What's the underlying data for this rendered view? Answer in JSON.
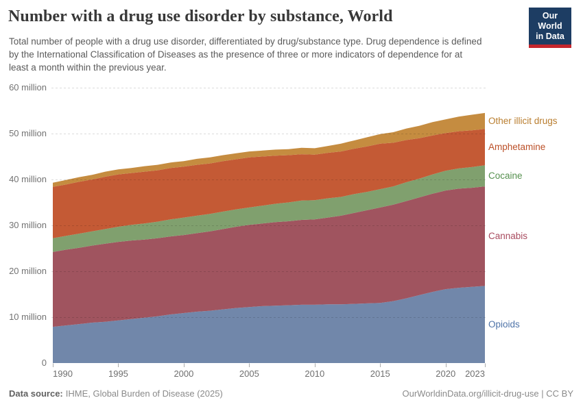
{
  "header": {
    "title": "Number with a drug use disorder by substance, World",
    "subtitle": "Total number of people with a drug use disorder, differentiated by drug/substance type. Drug dependence is defined by the International Classification of Diseases as the presence of three or more indicators of dependence for at least a month within the previous year.",
    "logo": {
      "line1": "Our World",
      "line2": "in Data",
      "bg_color": "#1d3d63",
      "accent_color": "#c5262d"
    }
  },
  "chart_data": {
    "type": "area",
    "stacked": true,
    "title": "Number with a drug use disorder by substance, World",
    "xlabel": "",
    "ylabel": "",
    "unit": "million people",
    "ylim": [
      0,
      60
    ],
    "grid": "dashed-horizontal",
    "legend_position": "right-edge-labels",
    "x": [
      1990,
      1991,
      1992,
      1993,
      1994,
      1995,
      1996,
      1997,
      1998,
      1999,
      2000,
      2001,
      2002,
      2003,
      2004,
      2005,
      2006,
      2007,
      2008,
      2009,
      2010,
      2011,
      2012,
      2013,
      2014,
      2015,
      2016,
      2017,
      2018,
      2019,
      2020,
      2021,
      2022,
      2023
    ],
    "series": [
      {
        "name": "Opioids",
        "color": "#7187aa",
        "label_color": "#4e73a8",
        "values": [
          7.9,
          8.2,
          8.5,
          8.8,
          9.0,
          9.3,
          9.6,
          9.9,
          10.2,
          10.6,
          10.9,
          11.2,
          11.4,
          11.7,
          12.0,
          12.2,
          12.4,
          12.5,
          12.6,
          12.7,
          12.7,
          12.8,
          12.8,
          12.9,
          13.0,
          13.1,
          13.5,
          14.1,
          14.8,
          15.5,
          16.1,
          16.4,
          16.6,
          16.8
        ]
      },
      {
        "name": "Cannabis",
        "color": "#a0545f",
        "label_color": "#a84a5e",
        "values": [
          16.3,
          16.5,
          16.6,
          16.8,
          17.0,
          17.1,
          17.1,
          17.0,
          17.0,
          17.0,
          17.0,
          17.1,
          17.3,
          17.5,
          17.7,
          17.9,
          18.0,
          18.2,
          18.3,
          18.5,
          18.6,
          18.9,
          19.3,
          19.8,
          20.3,
          20.8,
          21.0,
          21.2,
          21.3,
          21.4,
          21.5,
          21.6,
          21.6,
          21.7
        ]
      },
      {
        "name": "Cocaine",
        "color": "#80a06e",
        "label_color": "#55904e",
        "values": [
          3.0,
          3.0,
          3.1,
          3.1,
          3.2,
          3.3,
          3.4,
          3.5,
          3.6,
          3.7,
          3.8,
          3.8,
          3.8,
          3.8,
          3.8,
          3.8,
          3.9,
          4.0,
          4.1,
          4.2,
          4.2,
          4.2,
          4.1,
          4.1,
          4.0,
          4.0,
          4.0,
          4.1,
          4.1,
          4.2,
          4.3,
          4.4,
          4.5,
          4.6
        ]
      },
      {
        "name": "Amphetamine",
        "color": "#c45a35",
        "label_color": "#bb4f27",
        "values": [
          11.2,
          11.2,
          11.3,
          11.3,
          11.4,
          11.4,
          11.3,
          11.3,
          11.2,
          11.2,
          11.1,
          11.1,
          11.0,
          11.0,
          10.9,
          10.9,
          10.7,
          10.5,
          10.3,
          10.1,
          9.9,
          9.9,
          9.9,
          9.9,
          9.9,
          9.9,
          9.5,
          9.2,
          8.8,
          8.5,
          8.2,
          8.1,
          8.0,
          7.9
        ]
      },
      {
        "name": "Other illicit drugs",
        "color": "#c58c40",
        "label_color": "#b97d2e",
        "values": [
          0.9,
          1.0,
          1.0,
          1.0,
          1.1,
          1.1,
          1.1,
          1.2,
          1.2,
          1.2,
          1.2,
          1.3,
          1.3,
          1.3,
          1.3,
          1.3,
          1.3,
          1.3,
          1.3,
          1.4,
          1.4,
          1.5,
          1.7,
          1.8,
          2.0,
          2.1,
          2.3,
          2.5,
          2.7,
          2.9,
          3.0,
          3.2,
          3.4,
          3.5
        ]
      }
    ],
    "yticks": [
      {
        "value": 0,
        "label": "0"
      },
      {
        "value": 10,
        "label": "10 million"
      },
      {
        "value": 20,
        "label": "20 million"
      },
      {
        "value": 30,
        "label": "30 million"
      },
      {
        "value": 40,
        "label": "40 million"
      },
      {
        "value": 50,
        "label": "50 million"
      },
      {
        "value": 60,
        "label": "60 million"
      }
    ],
    "xticks": [
      1990,
      1995,
      2000,
      2005,
      2010,
      2015,
      2020,
      2023
    ]
  },
  "footer": {
    "source_label": "Data source:",
    "source_text": "IHME, Global Burden of Disease (2025)",
    "link_text": "OurWorldinData.org/illicit-drug-use | CC BY"
  }
}
